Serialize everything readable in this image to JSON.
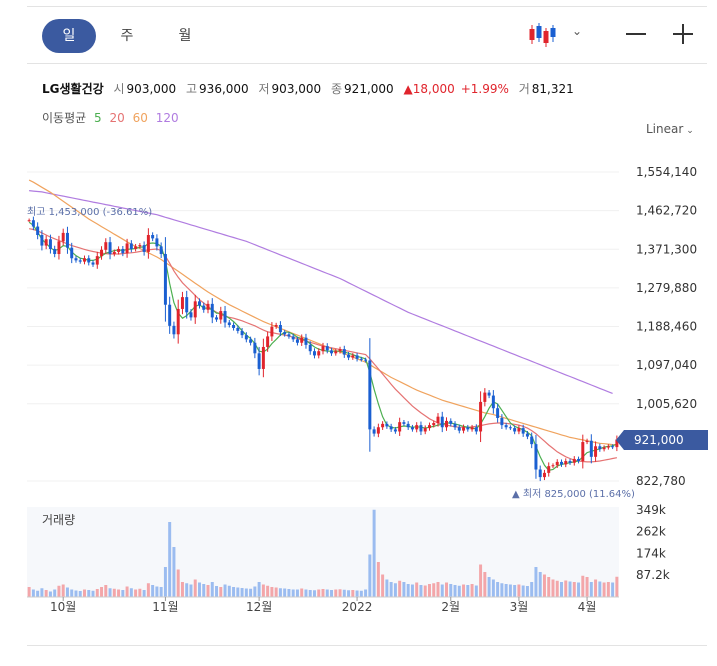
{
  "tabs": [
    "일",
    "주",
    "월"
  ],
  "stock": {
    "name": "LG생활건강",
    "open_label": "시",
    "open": "903,000",
    "high_label": "고",
    "high": "936,000",
    "low_label": "저",
    "low": "903,000",
    "close_label": "종",
    "close": "921,000",
    "change": "▲18,000",
    "change_pct": "+1.99%",
    "volume_label": "거",
    "volume": "81,321"
  },
  "ma_legend": {
    "label": "이동평균",
    "ma5": "5",
    "ma20": "20",
    "ma60": "60",
    "ma120": "120"
  },
  "scale_label": "Linear",
  "current_price_tag": "921,000",
  "annotations": {
    "high": "최고 1,453,000 (-36.61%)",
    "low": "▲ 최저 825,000 (11.64%)"
  },
  "volume_title": "거래량",
  "colors": {
    "up": "#e0242c",
    "down": "#1a5fd1",
    "ma5": "#4caf50",
    "ma20": "#e57373",
    "ma60": "#f0a35e",
    "ma120": "#b07ce0",
    "accent": "#3b5aa0"
  },
  "chart_data": {
    "type": "candlestick",
    "y_ticks": [
      "1,554,140",
      "1,462,720",
      "1,371,300",
      "1,279,880",
      "1,188,460",
      "1,097,040",
      "1,005,620",
      "822,780"
    ],
    "y_range": [
      822780,
      1554140
    ],
    "x_ticks": [
      "10월",
      "11월",
      "12월",
      "2022",
      "2월",
      "3월",
      "4월"
    ],
    "volume_ticks": [
      "349k",
      "262k",
      "174k",
      "87.2k"
    ],
    "close": [
      1440000,
      1425000,
      1405000,
      1380000,
      1395000,
      1372000,
      1360000,
      1390000,
      1410000,
      1375000,
      1350000,
      1345000,
      1342000,
      1350000,
      1340000,
      1335000,
      1355000,
      1370000,
      1388000,
      1360000,
      1365000,
      1372000,
      1362000,
      1385000,
      1372000,
      1378000,
      1381000,
      1365000,
      1405000,
      1397000,
      1378000,
      1360000,
      1240000,
      1190000,
      1170000,
      1230000,
      1258000,
      1222000,
      1210000,
      1248000,
      1238000,
      1228000,
      1242000,
      1210000,
      1205000,
      1225000,
      1198000,
      1192000,
      1185000,
      1178000,
      1168000,
      1158000,
      1150000,
      1125000,
      1088000,
      1140000,
      1165000,
      1188000,
      1192000,
      1175000,
      1170000,
      1165000,
      1158000,
      1150000,
      1162000,
      1145000,
      1130000,
      1120000,
      1130000,
      1142000,
      1132000,
      1125000,
      1130000,
      1135000,
      1122000,
      1115000,
      1120000,
      1112000,
      1110000,
      1108000,
      945000,
      935000,
      950000,
      958000,
      952000,
      945000,
      940000,
      962000,
      958000,
      950000,
      945000,
      955000,
      940000,
      948000,
      955000,
      960000,
      975000,
      950000,
      965000,
      958000,
      950000,
      942000,
      950000,
      945000,
      950000,
      940000,
      1010000,
      1032000,
      1025000,
      995000,
      972000,
      955000,
      950000,
      948000,
      940000,
      948000,
      935000,
      928000,
      910000,
      850000,
      832000,
      842000,
      858000,
      860000,
      868000,
      862000,
      870000,
      866000,
      875000,
      870000,
      915000,
      918000,
      880000,
      905000,
      898000,
      902000,
      905000,
      903000,
      921000
    ],
    "ma5": [
      1435000,
      1428000,
      1412000,
      1395000,
      1385000,
      1375000,
      1368000,
      1372000,
      1380000,
      1378000,
      1365000,
      1356000,
      1350000,
      1348000,
      1345000,
      1345000,
      1348000,
      1355000,
      1362000,
      1365000,
      1368000,
      1370000,
      1368000,
      1371000,
      1372000,
      1373000,
      1376000,
      1377000,
      1385000,
      1386000,
      1385000,
      1378000,
      1345000,
      1290000,
      1245000,
      1220000,
      1208000,
      1214000,
      1225000,
      1236000,
      1240000,
      1232000,
      1232000,
      1228000,
      1220000,
      1220000,
      1215000,
      1208000,
      1200000,
      1190000,
      1178000,
      1168000,
      1160000,
      1148000,
      1130000,
      1128000,
      1135000,
      1148000,
      1158000,
      1168000,
      1175000,
      1175000,
      1170000,
      1163000,
      1160000,
      1155000,
      1148000,
      1140000,
      1135000,
      1132000,
      1130000,
      1130000,
      1130000,
      1130000,
      1128000,
      1125000,
      1122000,
      1118000,
      1115000,
      1112000,
      1080000,
      1040000,
      1005000,
      975000,
      955000,
      950000,
      948000,
      951000,
      953000,
      952000,
      950000,
      951000,
      950000,
      948000,
      950000,
      952000,
      955000,
      957000,
      960000,
      960000,
      958000,
      955000,
      952000,
      950000,
      948000,
      946000,
      958000,
      975000,
      995000,
      1010000,
      1005000,
      990000,
      975000,
      960000,
      952000,
      948000,
      944000,
      938000,
      930000,
      905000,
      880000,
      860000,
      848000,
      850000,
      858000,
      862000,
      864000,
      866000,
      868000,
      870000,
      880000,
      890000,
      893000,
      896000,
      899000,
      903000,
      905000,
      906000,
      910000
    ],
    "ma20": [
      1420000,
      1418000,
      1415000,
      1410000,
      1405000,
      1400000,
      1396000,
      1392000,
      1388000,
      1384000,
      1380000,
      1377000,
      1374000,
      1371000,
      1368000,
      1366000,
      1364000,
      1362000,
      1361000,
      1360000,
      1360000,
      1360000,
      1361000,
      1362000,
      1363000,
      1364000,
      1366000,
      1368000,
      1370000,
      1371000,
      1372000,
      1368000,
      1355000,
      1338000,
      1320000,
      1305000,
      1292000,
      1282000,
      1272000,
      1262000,
      1252000,
      1244000,
      1236000,
      1228000,
      1222000,
      1217000,
      1212000,
      1210000,
      1208000,
      1205000,
      1202000,
      1198000,
      1194000,
      1190000,
      1185000,
      1180000,
      1176000,
      1174000,
      1172000,
      1170000,
      1168000,
      1166000,
      1163000,
      1160000,
      1157000,
      1154000,
      1151000,
      1148000,
      1145000,
      1142000,
      1140000,
      1138000,
      1136000,
      1134000,
      1132000,
      1130000,
      1128000,
      1126000,
      1124000,
      1122000,
      1112000,
      1100000,
      1088000,
      1076000,
      1064000,
      1052000,
      1040000,
      1030000,
      1020000,
      1010000,
      1000000,
      992000,
      984000,
      977000,
      970000,
      965000,
      960000,
      957000,
      955000,
      953000,
      951000,
      950000,
      950000,
      950000,
      951000,
      952000,
      954000,
      956000,
      958000,
      959000,
      960000,
      960000,
      959000,
      958000,
      957000,
      955000,
      952000,
      948000,
      942000,
      935000,
      926000,
      917000,
      908000,
      900000,
      892000,
      886000,
      880000,
      876000,
      872000,
      870000,
      869000,
      868000,
      868000,
      869000,
      870000,
      872000,
      874000,
      876000,
      878000
    ],
    "ma60": [
      1535000,
      1530000,
      1524000,
      1518000,
      1512000,
      1506000,
      1499000,
      1492000,
      1485000,
      1478000,
      1471000,
      1464000,
      1457000,
      1450000,
      1443000,
      1437000,
      1431000,
      1425000,
      1419000,
      1413000,
      1407000,
      1401000,
      1395000,
      1389000,
      1383000,
      1378000,
      1373000,
      1368000,
      1363000,
      1358000,
      1353000,
      1347000,
      1340000,
      1333000,
      1326000,
      1319000,
      1312000,
      1305000,
      1298000,
      1291000,
      1284000,
      1277000,
      1270000,
      1264000,
      1258000,
      1252000,
      1246000,
      1240000,
      1235000,
      1230000,
      1225000,
      1220000,
      1215000,
      1210000,
      1205000,
      1200000,
      1196000,
      1192000,
      1188000,
      1184000,
      1180000,
      1176000,
      1172000,
      1168000,
      1164000,
      1160000,
      1156000,
      1152000,
      1148000,
      1144000,
      1140000,
      1136000,
      1132000,
      1128000,
      1124000,
      1120000,
      1116000,
      1112000,
      1108000,
      1104000,
      1098000,
      1092000,
      1086000,
      1080000,
      1074000,
      1068000,
      1063000,
      1058000,
      1053000,
      1048000,
      1043000,
      1038000,
      1034000,
      1030000,
      1026000,
      1022000,
      1018000,
      1014000,
      1011000,
      1008000,
      1005000,
      1002000,
      999000,
      996000,
      993000,
      990000,
      987000,
      984000,
      982000,
      980000,
      977000,
      974000,
      971000,
      968000,
      965000,
      962000,
      959000,
      956000,
      953000,
      950000,
      947000,
      944000,
      941000,
      938000,
      935000,
      932000,
      929000,
      926000,
      924000,
      922000,
      920000,
      918000,
      916000,
      914000,
      912000,
      911000,
      910000,
      909000,
      908000
    ],
    "ma120": [
      1510000,
      1509000,
      1508000,
      1507000,
      1505000,
      1503000,
      1501000,
      1499000,
      1497000,
      1495000,
      1493000,
      1491000,
      1489000,
      1487000,
      1485000,
      1483000,
      1481000,
      1479000,
      1477000,
      1475000,
      1473000,
      1471000,
      1469000,
      1467000,
      1465000,
      1463000,
      1461000,
      1459000,
      1457000,
      1455000,
      1453000,
      1450000,
      1447000,
      1444000,
      1441000,
      1438000,
      1435000,
      1432000,
      1429000,
      1426000,
      1423000,
      1420000,
      1417000,
      1414000,
      1411000,
      1408000,
      1405000,
      1402000,
      1399000,
      1396000,
      1393000,
      1390000,
      1386000,
      1382000,
      1378000,
      1374000,
      1370000,
      1366000,
      1362000,
      1358000,
      1354000,
      1350000,
      1346000,
      1342000,
      1338000,
      1334000,
      1330000,
      1326000,
      1322000,
      1318000,
      1314000,
      1310000,
      1306000,
      1302000,
      1297000,
      1292000,
      1287000,
      1282000,
      1277000,
      1272000,
      1267000,
      1262000,
      1257000,
      1252000,
      1247000,
      1242000,
      1237000,
      1232000,
      1227000,
      1222000,
      1218000,
      1214000,
      1210000,
      1206000,
      1202000,
      1198000,
      1194000,
      1190000,
      1186000,
      1182000,
      1178000,
      1174000,
      1170000,
      1166000,
      1162000,
      1158000,
      1154000,
      1150000,
      1146000,
      1142000,
      1138000,
      1134000,
      1130000,
      1126000,
      1122000,
      1118000,
      1114000,
      1110000,
      1106000,
      1102000,
      1098000,
      1094000,
      1090000,
      1086000,
      1082000,
      1078000,
      1074000,
      1070000,
      1066000,
      1062000,
      1058000,
      1054000,
      1050000,
      1046000,
      1042000,
      1038000,
      1034000,
      1030000
    ],
    "volume": [
      40,
      30,
      25,
      35,
      28,
      22,
      30,
      45,
      50,
      38,
      30,
      26,
      24,
      30,
      28,
      25,
      32,
      40,
      48,
      35,
      33,
      30,
      28,
      42,
      35,
      30,
      33,
      28,
      55,
      48,
      42,
      40,
      120,
      300,
      200,
      110,
      60,
      55,
      50,
      70,
      58,
      52,
      48,
      60,
      44,
      40,
      50,
      45,
      40,
      38,
      36,
      34,
      33,
      42,
      60,
      50,
      45,
      40,
      38,
      35,
      34,
      32,
      30,
      30,
      34,
      30,
      28,
      27,
      30,
      32,
      30,
      28,
      30,
      31,
      29,
      27,
      28,
      26,
      25,
      30,
      170,
      349,
      140,
      90,
      70,
      60,
      55,
      65,
      60,
      52,
      50,
      58,
      48,
      46,
      52,
      55,
      60,
      50,
      58,
      52,
      48,
      45,
      50,
      48,
      52,
      46,
      130,
      100,
      80,
      70,
      60,
      55,
      52,
      50,
      48,
      50,
      46,
      44,
      60,
      120,
      100,
      90,
      80,
      70,
      65,
      60,
      66,
      62,
      60,
      58,
      85,
      80,
      60,
      70,
      62,
      58,
      60,
      58,
      81
    ]
  }
}
